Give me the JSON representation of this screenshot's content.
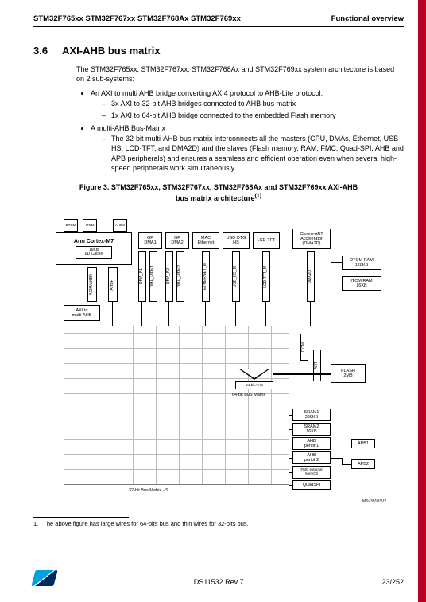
{
  "header": {
    "left": "STM32F765xx STM32F767xx STM32F768Ax STM32F769xx",
    "right": "Functional overview"
  },
  "section": {
    "num": "3.6",
    "title": "AXI-AHB bus matrix"
  },
  "intro": "The STM32F765xx, STM32F767xx, STM32F768Ax and STM32F769xx system architecture is based on 2 sub-systems:",
  "bullets": {
    "b1": "An AXI to multi AHB bridge converting AXI4 protocol to AHB-Lite protocol:",
    "b1a": "3x AXI to 32-bit AHB bridges connected to AHB bus matrix",
    "b1b": "1x AXI to 64-bit AHB bridge connected to the embedded Flash memory",
    "b2": "A multi-AHB Bus-Matrix",
    "b2a": "The 32-bit multi-AHB bus matrix interconnects all the masters (CPU, DMAs, Ethernet, USB HS, LCD-TFT, and DMA2D) and the slaves (Flash memory, RAM, FMC, Quad-SPI, AHB and APB peripherals) and ensures a seamless and efficient operation even when several high-speed peripherals work simultaneously."
  },
  "figure": {
    "caption_l1": "Figure 3. STM32F765xx, STM32F767xx, STM32F768Ax and STM32F769xx AXI-AHB",
    "caption_l2": "bus matrix architecture",
    "caption_sup": "(1)"
  },
  "diagram": {
    "cpu": "Arm Cortex-M7",
    "cache": "16KB\nI/D Cache",
    "dtcm": "DTCM",
    "itcm": "ITCM",
    "ahbs": "AHBS",
    "masters": {
      "gpdma1": "GP\nDMA1",
      "gpdma2": "GP\nDMA2",
      "mac": "MAC\nEthernet",
      "usb": "USB OTG\nHS",
      "lcd": "LCD-TFT",
      "dma2d": "Chrom-ART\nAccelerator\n(DMA2D)"
    },
    "vbus": {
      "aximahb": "AXIM/AHB4",
      "ahbp": "AHBP",
      "dma_p1": "DMA_P1",
      "dma_mem1": "DMA_MEM1",
      "dma_p2": "DMA_P2",
      "dma_mem2": "DMA_MEM2",
      "eth": "ETHERNET_M",
      "usbhs": "USB_HS_M",
      "lcdtft": "LCD-TFT_M",
      "dma2d": "DMA2D"
    },
    "axi_bridge": "AXI to\nmulti-AHB",
    "slaves": {
      "dtcm_ram": "DTCM RAM\n128KB",
      "itcm_ram": "ITCM RAM\n16KB",
      "flash": "FLASH\n2MB",
      "sram1": "SRAM1\n368KB",
      "sram2": "SRAM2\n16KB",
      "ahb_p1": "AHB\nperiph1",
      "ahb_p2": "AHB\nperiph2",
      "fmc": "FMC external\nMemCtl",
      "quadspi": "QuadSPI",
      "apb1": "APB1",
      "apb2": "APB2"
    },
    "labels": {
      "bus64": "64-bit BuS Matrix",
      "bus32": "32-bit Bus Matrix - S",
      "itcm_l": "ITCM",
      "art": "ART",
      "axi64": "64-bit AHB"
    },
    "rev": "MSv39103V2"
  },
  "footnote": {
    "num": "1.",
    "text": "The above figure has large wires for 64-bits bus and thin wires for 32-bits bus."
  },
  "footer": {
    "doc": "DS11532 Rev 7",
    "page": "23/252"
  }
}
